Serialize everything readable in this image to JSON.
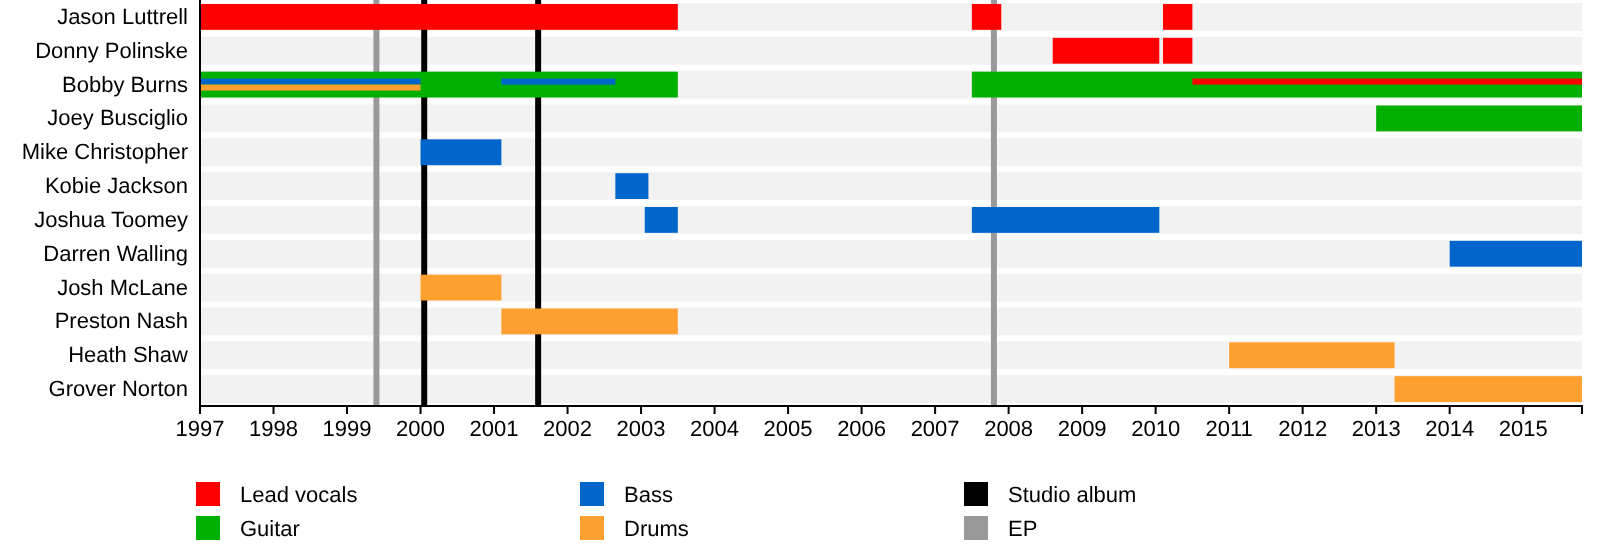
{
  "chart_data": {
    "type": "bar",
    "orientation": "horizontal",
    "categories": [
      "Jason Luttrell",
      "Donny Polinske",
      "Bobby Burns",
      "Joey Busciglio",
      "Mike Christopher",
      "Kobie Jackson",
      "Joshua Toomey",
      "Darren Walling",
      "Josh McLane",
      "Preston Nash",
      "Heath Shaw",
      "Grover Norton"
    ],
    "xlim": [
      1997,
      2015.8
    ],
    "xticks": [
      1997,
      1998,
      1999,
      2000,
      2001,
      2002,
      2003,
      2004,
      2005,
      2006,
      2007,
      2008,
      2009,
      2010,
      2011,
      2012,
      2013,
      2014,
      2015
    ],
    "series": [
      {
        "name": "Lead vocals",
        "color": "#ff0000",
        "base": [
          1997,
          2008.6,
          null,
          null,
          null,
          null,
          null,
          null,
          null,
          null,
          null,
          null
        ],
        "values": [
          6.5,
          1.45,
          null,
          null,
          null,
          null,
          null,
          null,
          null,
          null,
          null,
          null
        ]
      },
      {
        "name": "Guitar",
        "color": "#00b000",
        "base": [
          null,
          null,
          1997,
          2013,
          null,
          null,
          null,
          null,
          null,
          null,
          null,
          null
        ],
        "values": [
          null,
          null,
          6.5,
          2.8,
          null,
          null,
          null,
          null,
          null,
          null,
          null,
          null
        ]
      },
      {
        "name": "Bass",
        "color": "#0066cc",
        "base": [
          null,
          null,
          null,
          null,
          2000,
          2002.65,
          2003.05,
          2014,
          null,
          null,
          null,
          null
        ],
        "values": [
          null,
          null,
          null,
          null,
          1.1,
          0.45,
          0.45,
          1.8,
          null,
          null,
          null,
          null
        ]
      },
      {
        "name": "Drums",
        "color": "#ffa030",
        "base": [
          null,
          null,
          null,
          null,
          null,
          null,
          null,
          null,
          2000,
          2001.1,
          2011,
          2013.25
        ],
        "values": [
          null,
          null,
          null,
          null,
          null,
          null,
          null,
          null,
          1.1,
          2.4,
          2.25,
          2.55
        ]
      },
      {
        "color": "#ff0000",
        "base": [
          2007.5,
          2010.1,
          null,
          null,
          null,
          null,
          null,
          null,
          null,
          null,
          null,
          null
        ],
        "values": [
          0.4,
          0.4,
          null,
          null,
          null,
          null,
          null,
          null,
          null,
          null,
          null,
          null
        ]
      },
      {
        "color": "#ff0000",
        "base": [
          2010.1,
          null,
          null,
          null,
          null,
          null,
          null,
          null,
          null,
          null,
          null,
          null
        ],
        "values": [
          0.4,
          null,
          null,
          null,
          null,
          null,
          null,
          null,
          null,
          null,
          null,
          null
        ]
      },
      {
        "color": "#00b000",
        "base": [
          null,
          null,
          2007.5,
          null,
          null,
          null,
          null,
          null,
          null,
          null,
          null,
          null
        ],
        "values": [
          null,
          null,
          8.3,
          null,
          null,
          null,
          null,
          null,
          null,
          null,
          null,
          null
        ]
      },
      {
        "color": "#0066cc",
        "base": [
          null,
          null,
          null,
          null,
          null,
          null,
          2007.5,
          null,
          null,
          null,
          null,
          null
        ],
        "values": [
          null,
          null,
          null,
          null,
          null,
          null,
          2.55,
          null,
          null,
          null,
          null,
          null
        ]
      },
      {
        "color": "#0066cc",
        "base": [
          null,
          null,
          1997,
          null,
          null,
          null,
          null,
          null,
          null,
          null,
          null,
          null
        ],
        "values": [
          null,
          null,
          3,
          null,
          null,
          null,
          null,
          null,
          null,
          null,
          null,
          null
        ]
      },
      {
        "color": "#ffa030",
        "base": [
          null,
          null,
          1997,
          null,
          null,
          null,
          null,
          null,
          null,
          null,
          null,
          null
        ],
        "values": [
          null,
          null,
          3,
          null,
          null,
          null,
          null,
          null,
          null,
          null,
          null,
          null
        ]
      },
      {
        "color": "#0066cc",
        "base": [
          null,
          null,
          2001.1,
          null,
          null,
          null,
          null,
          null,
          null,
          null,
          null,
          null
        ],
        "values": [
          null,
          null,
          1.55,
          null,
          null,
          null,
          null,
          null,
          null,
          null,
          null,
          null
        ]
      },
      {
        "color": "#ff0000",
        "base": [
          null,
          null,
          2010.5,
          null,
          null,
          null,
          null,
          null,
          null,
          null,
          null,
          null
        ],
        "values": [
          null,
          null,
          5.3,
          null,
          null,
          null,
          null,
          null,
          null,
          null,
          null,
          null
        ]
      }
    ],
    "ref_lines": [
      {
        "axis": "x",
        "value": 2000.05,
        "label": "Studio album",
        "color": "#000000"
      },
      {
        "axis": "x",
        "value": 1999.4,
        "label": "EP",
        "color": "#999999"
      },
      {
        "axis": "x",
        "value": 2001.6,
        "label": null,
        "color": "#000000"
      },
      {
        "axis": "x",
        "value": 2007.8,
        "label": null,
        "color": "#999999"
      }
    ],
    "legend": "bottom",
    "grid": false
  }
}
